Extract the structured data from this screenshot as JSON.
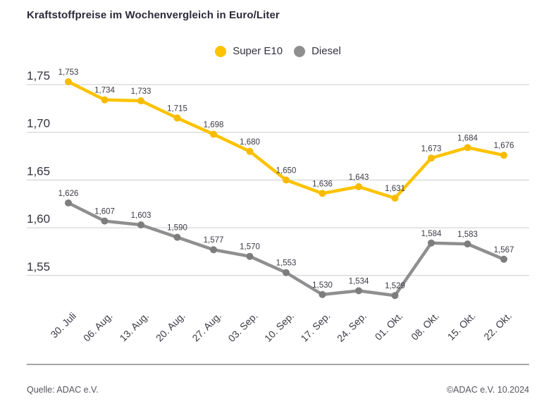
{
  "title": "Kraftstoffpreise im Wochenvergleich in Euro/Liter",
  "legend": [
    {
      "label": "Super E10",
      "color": "#fcc300"
    },
    {
      "label": "Diesel",
      "color": "#8f8f8f"
    }
  ],
  "footer": {
    "source": "Quelle: ADAC e.V.",
    "copyright": "©ADAC e.V. 10.2024"
  },
  "chart_data": {
    "type": "line",
    "title": "Kraftstoffpreise im Wochenvergleich in Euro/Liter",
    "categories": [
      "30. Juli",
      "06. Aug.",
      "13. Aug.",
      "20. Aug.",
      "27. Aug.",
      "03. Sep.",
      "10. Sep.",
      "17. Sep.",
      "24. Sep.",
      "01. Okt.",
      "08. Okt.",
      "15. Okt.",
      "22. Okt."
    ],
    "series": [
      {
        "name": "Super E10",
        "color": "#fcc300",
        "marker_color": "#f7bb00",
        "values": [
          1.753,
          1.734,
          1.733,
          1.715,
          1.698,
          1.68,
          1.65,
          1.636,
          1.643,
          1.631,
          1.673,
          1.684,
          1.676
        ]
      },
      {
        "name": "Diesel",
        "color": "#8f8f8f",
        "marker_color": "#7d7d7d",
        "values": [
          1.626,
          1.607,
          1.603,
          1.59,
          1.577,
          1.57,
          1.553,
          1.53,
          1.534,
          1.529,
          1.584,
          1.583,
          1.567
        ]
      }
    ],
    "y_ticks": [
      1.75,
      1.7,
      1.65,
      1.6,
      1.55
    ],
    "ylim": [
      1.515,
      1.758
    ],
    "decimal_separator": ",",
    "unit": "Euro/Liter",
    "grid": "horizontal",
    "gridline_color": "#cbcbcb",
    "label_color": "#3a3a44",
    "legend_position": "top-center",
    "value_labels": true
  }
}
